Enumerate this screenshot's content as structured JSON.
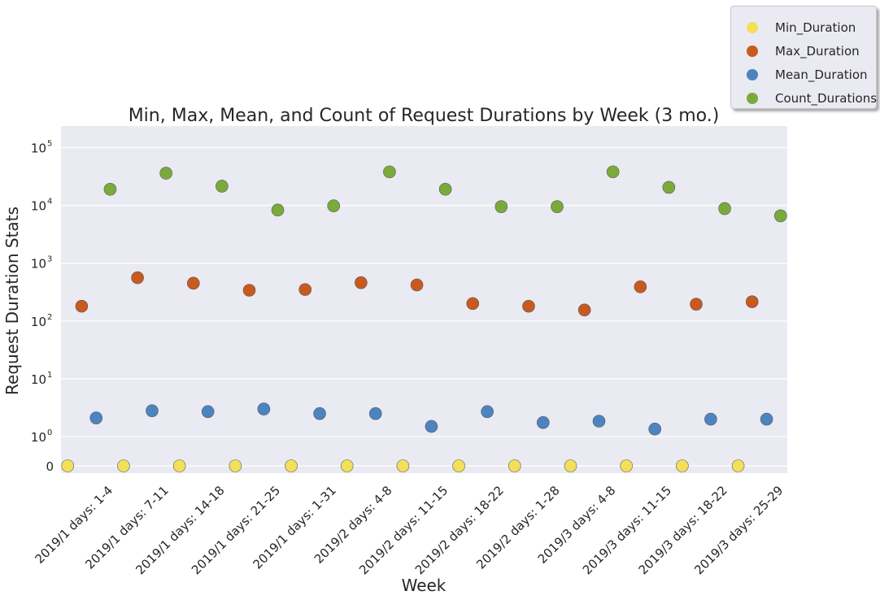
{
  "chart_data": {
    "type": "scatter",
    "title": "Min, Max, Mean, and Count of Request Durations by Week (3 mo.)",
    "xlabel": "Week",
    "ylabel": "Request Duration Stats",
    "yscale": "symlog",
    "ylim": [
      -0.2,
      100000
    ],
    "y_ticks": [
      {
        "value": 0,
        "label": "0"
      },
      {
        "value": 1,
        "label": "10",
        "sup": "0"
      },
      {
        "value": 10,
        "label": "10",
        "sup": "1"
      },
      {
        "value": 100,
        "label": "10",
        "sup": "2"
      },
      {
        "value": 1000,
        "label": "10",
        "sup": "3"
      },
      {
        "value": 10000,
        "label": "10",
        "sup": "4"
      },
      {
        "value": 100000,
        "label": "10",
        "sup": "5"
      }
    ],
    "categories": [
      "2019/1 days: 1-4",
      "2019/1 days: 7-11",
      "2019/1 days: 14-18",
      "2019/1 days: 21-25",
      "2019/1 days: 1-31",
      "2019/2 days: 4-8",
      "2019/2 days: 11-15",
      "2019/2 days: 18-22",
      "2019/2 days: 1-28",
      "2019/3 days: 4-8",
      "2019/3 days: 11-15",
      "2019/3 days: 18-22",
      "2019/3 days: 25-29"
    ],
    "grid": true,
    "legend_position": "top-right",
    "series": [
      {
        "name": "Min_Duration",
        "color": "#f2df5a",
        "values": [
          0,
          0,
          0,
          0,
          0,
          0,
          0,
          0,
          0,
          0,
          0,
          0,
          0
        ]
      },
      {
        "name": "Max_Duration",
        "color": "#c85a1e",
        "values": [
          180,
          560,
          450,
          340,
          350,
          460,
          420,
          200,
          180,
          155,
          390,
          195,
          215
        ]
      },
      {
        "name": "Mean_Duration",
        "color": "#4c84c1",
        "values": [
          2.1,
          2.8,
          2.7,
          3.0,
          2.5,
          2.5,
          1.5,
          2.7,
          1.75,
          1.85,
          1.35,
          2.0,
          2.0
        ]
      },
      {
        "name": "Count_Durations",
        "color": "#7aab3a",
        "values": [
          19000,
          36000,
          21500,
          8300,
          9800,
          38000,
          19000,
          9500,
          9500,
          38000,
          20500,
          8800,
          6600
        ]
      }
    ]
  }
}
